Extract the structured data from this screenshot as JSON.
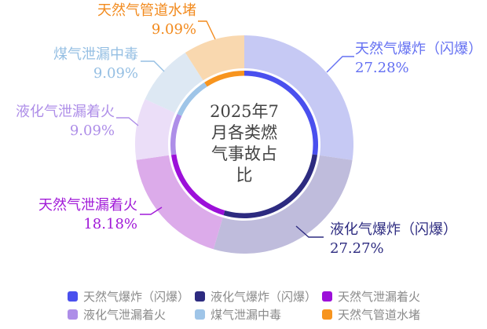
{
  "chart_data": {
    "type": "pie",
    "variant": "donut",
    "title": "2025年7月各类燃气事故占比",
    "title_lines": [
      "2025年7",
      "月各类燃",
      "气事故占",
      "比"
    ],
    "title_color": "#434343",
    "background": "#ffffff",
    "legend_position": "bottom",
    "start_angle_deg": 0,
    "clockwise": true,
    "unit": "%",
    "series": [
      {
        "name": "天然气爆炸（闪爆）",
        "value": 27.28,
        "percent": "27.28%",
        "color_pale": "#c6c9f4",
        "color_bright": "#4a50ee",
        "color_label": "#6470f2"
      },
      {
        "name": "液化气爆炸（闪爆）",
        "value": 27.27,
        "percent": "27.27%",
        "color_pale": "#bfbcdc",
        "color_bright": "#2d2b80",
        "color_label": "#2d2b80"
      },
      {
        "name": "天然气泄漏着火",
        "value": 18.18,
        "percent": "18.18%",
        "color_pale": "#dcabea",
        "color_bright": "#9c10d9",
        "color_label": "#a11ad8"
      },
      {
        "name": "液化气泄漏着火",
        "value": 9.09,
        "percent": "9.09%",
        "color_pale": "#ebdef8",
        "color_bright": "#ae8ee8",
        "color_label": "#ae8ee8"
      },
      {
        "name": "煤气泄漏中毒",
        "value": 9.09,
        "percent": "9.09%",
        "color_pale": "#dde8f3",
        "color_bright": "#9fc5e8",
        "color_label": "#95bfe3"
      },
      {
        "name": "天然气管道水堵",
        "value": 9.09,
        "percent": "9.09%",
        "color_pale": "#f9d8af",
        "color_bright": "#f7941e",
        "color_label": "#f28a1d"
      }
    ]
  }
}
